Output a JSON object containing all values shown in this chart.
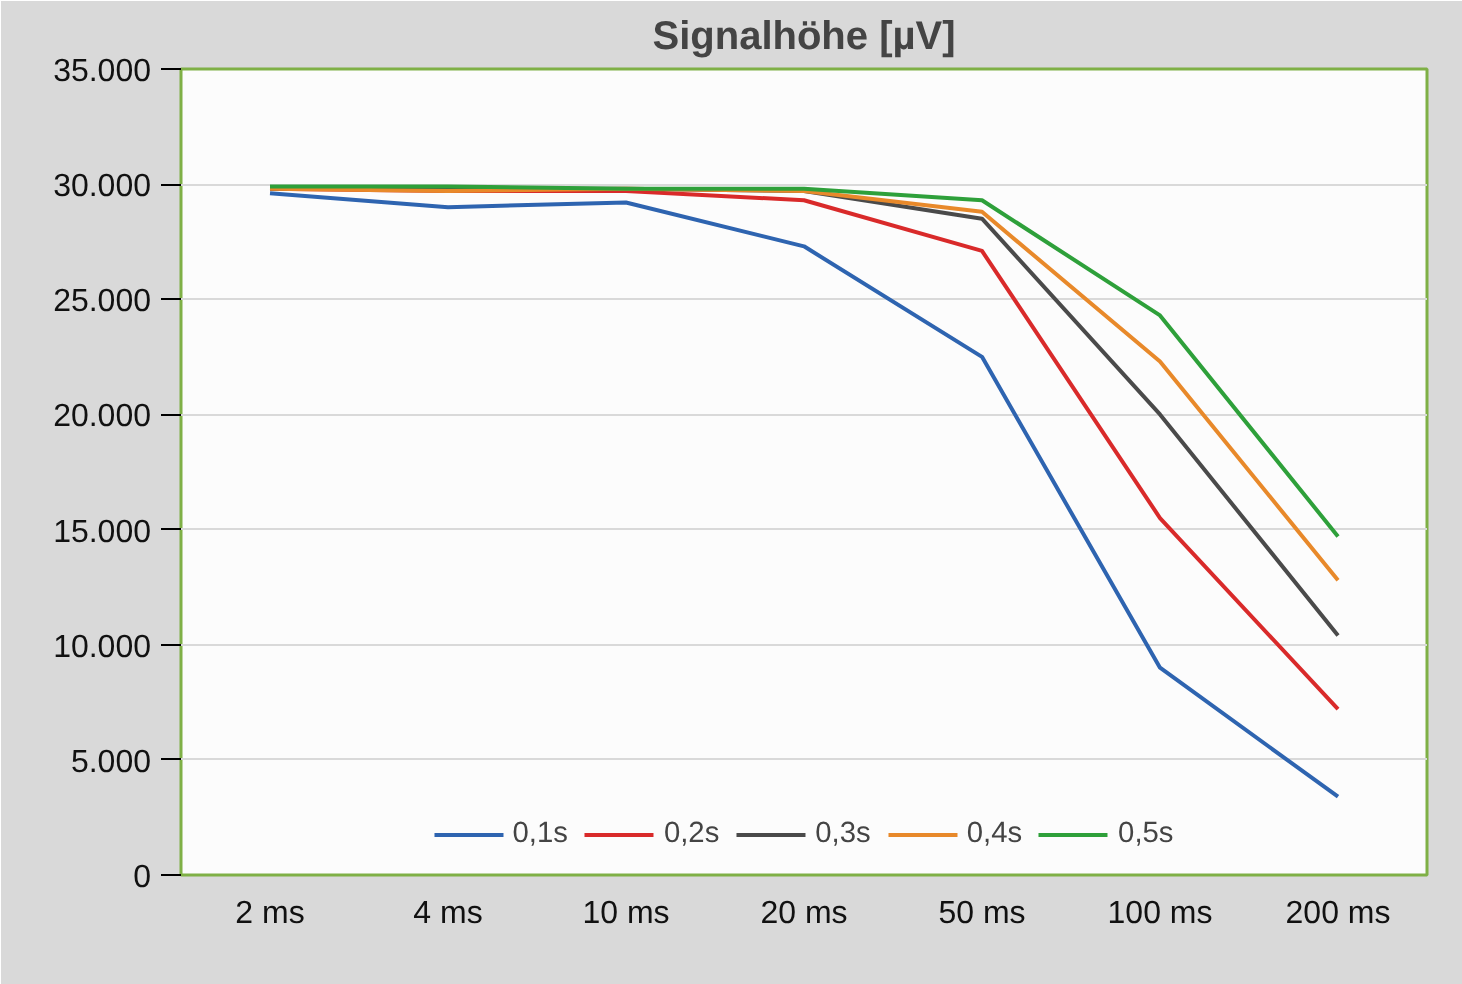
{
  "chart_data": {
    "type": "line",
    "title": "Signalhöhe [µV]",
    "categories": [
      "2 ms",
      "4 ms",
      "10 ms",
      "20 ms",
      "50 ms",
      "100 ms",
      "200 ms"
    ],
    "series": [
      {
        "name": "0,1s",
        "color": "#2e64b0",
        "values": [
          29600,
          29000,
          29200,
          27300,
          22500,
          9000,
          3400
        ]
      },
      {
        "name": "0,2s",
        "color": "#d92a2a",
        "values": [
          29800,
          29700,
          29700,
          29300,
          27100,
          15500,
          7200
        ]
      },
      {
        "name": "0,3s",
        "color": "#4a4a4a",
        "values": [
          29800,
          29800,
          29800,
          29700,
          28500,
          20000,
          10400
        ]
      },
      {
        "name": "0,4s",
        "color": "#e8892a",
        "values": [
          29800,
          29700,
          29800,
          29700,
          28800,
          22300,
          12800
        ]
      },
      {
        "name": "0,5s",
        "color": "#2ea03a",
        "values": [
          29900,
          29900,
          29800,
          29800,
          29300,
          24300,
          14700
        ]
      }
    ],
    "ylim": [
      0,
      35000
    ],
    "yticks": [
      0,
      {
        "value": 5000,
        "label": "5.000"
      },
      {
        "value": 10000,
        "label": "10.000"
      },
      {
        "value": 15000,
        "label": "15.000"
      },
      {
        "value": 20000,
        "label": "20.000"
      },
      {
        "value": 25000,
        "label": "25.000"
      },
      {
        "value": 30000,
        "label": "30.000"
      },
      {
        "value": 35000,
        "label": "35.000"
      }
    ],
    "grid": "y",
    "legend": "bottom",
    "marker": "none",
    "line_style": "solid"
  }
}
